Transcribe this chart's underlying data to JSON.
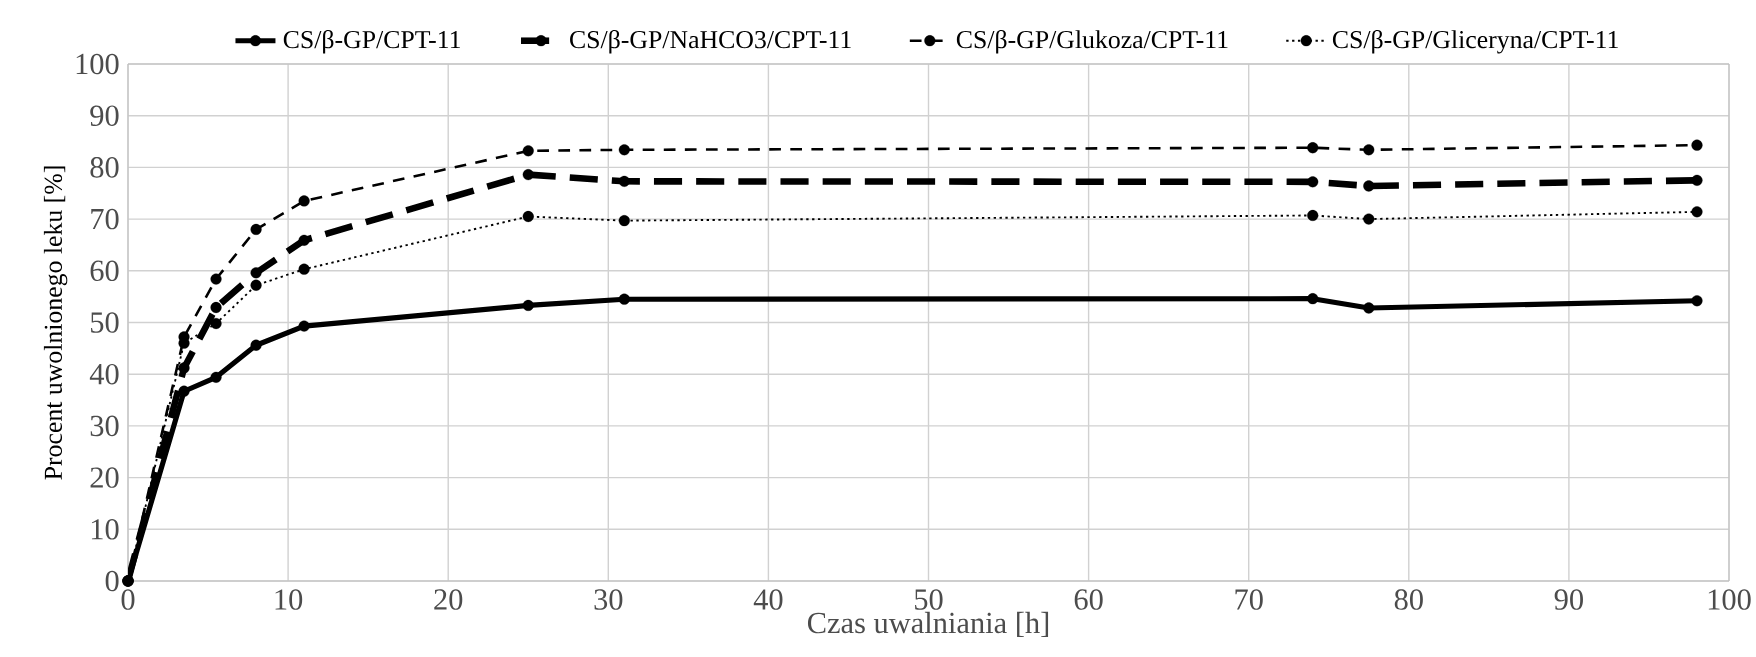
{
  "chart_data": {
    "type": "line",
    "xlabel": "Czas uwalniania [h]",
    "ylabel": "Procent uwolnionego leku [%]",
    "x": [
      0,
      3.5,
      5.5,
      8,
      11,
      25,
      31,
      74,
      77.5,
      98
    ],
    "series": [
      {
        "name": "CS/β-GP/CPT-11",
        "color": "#000000",
        "line_style": "solid",
        "values": [
          0,
          36.7,
          39.4,
          45.6,
          49.3,
          53.3,
          54.5,
          54.6,
          52.8,
          54.2
        ]
      },
      {
        "name": "CS/β-GP/NaHCO3/CPT-11",
        "color": "#000000",
        "line_style": "dashed",
        "values": [
          0,
          41.2,
          52.9,
          59.6,
          65.9,
          78.6,
          77.3,
          77.2,
          76.4,
          77.5
        ]
      },
      {
        "name": "CS/β-GP/Glukoza/CPT-11",
        "color": "#000000",
        "line_style": "dashed",
        "values": [
          0,
          47.2,
          58.4,
          68.0,
          73.5,
          83.2,
          83.4,
          83.8,
          83.4,
          84.3
        ]
      },
      {
        "name": "CS/β-GP/Gliceryna/CPT-11",
        "color": "#000000",
        "line_style": "dotted",
        "values": [
          0,
          46.0,
          49.8,
          57.2,
          60.3,
          70.5,
          69.7,
          70.7,
          70.0,
          71.4
        ]
      }
    ],
    "xlim": [
      0,
      100
    ],
    "ylim": [
      0,
      100
    ],
    "xticks": [
      0,
      10,
      20,
      30,
      40,
      50,
      60,
      70,
      80,
      90,
      100
    ],
    "yticks": [
      0,
      10,
      20,
      30,
      40,
      50,
      60,
      70,
      80,
      90,
      100
    ],
    "grid": true,
    "legend": "top",
    "marker": "circle"
  }
}
